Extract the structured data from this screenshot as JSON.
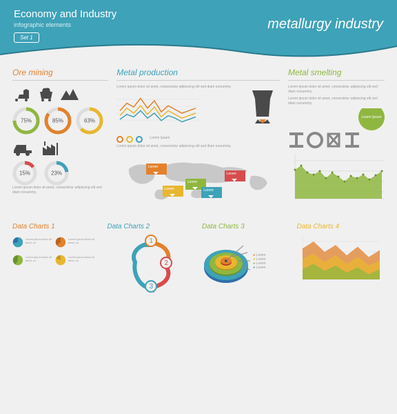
{
  "colors": {
    "teal": "#3ea2b8",
    "orange": "#e2812d",
    "green": "#8fb73f",
    "red": "#d84c4c",
    "yellow": "#e8b730",
    "blue": "#2f6fa8",
    "gray": "#888888",
    "dark": "#4a4a4a",
    "bg": "#f0f0f0"
  },
  "header": {
    "title": "Economy and Industry",
    "subtitle": "infographic elements",
    "right": "metallurgy industry",
    "set": "Set 1"
  },
  "lorem_short": "Lorem ipsum dolor sit amet, consectetur adipiscing elit sed diam nonummy.",
  "lorem_ipsum": "Lorem Ipsum",
  "sections": {
    "ore": {
      "title": "Ore mining",
      "donuts1": [
        {
          "pct": 75,
          "color": "#8fb73f"
        },
        {
          "pct": 85,
          "color": "#e2812d"
        },
        {
          "pct": 63,
          "color": "#e8b730"
        }
      ],
      "donuts2": [
        {
          "pct": 15,
          "color": "#d84c4c"
        },
        {
          "pct": 23,
          "color": "#3ea2b8"
        }
      ]
    },
    "prod": {
      "title": "Metal production",
      "lines": [
        {
          "color": "#e2812d",
          "points": [
            12,
            18,
            15,
            22,
            14,
            20,
            11,
            16,
            13,
            10,
            12,
            14
          ]
        },
        {
          "color": "#e8b730",
          "points": [
            8,
            14,
            10,
            16,
            9,
            15,
            7,
            12,
            9,
            6,
            8,
            10
          ]
        },
        {
          "color": "#3ea2b8",
          "points": [
            5,
            9,
            7,
            12,
            6,
            10,
            4,
            8,
            6,
            3,
            5,
            7
          ]
        }
      ],
      "map_markers": [
        {
          "x": 18,
          "y": 15,
          "color": "#e2812d"
        },
        {
          "x": 42,
          "y": 42,
          "color": "#8fb73f"
        },
        {
          "x": 66,
          "y": 28,
          "color": "#d84c4c"
        },
        {
          "x": 52,
          "y": 58,
          "color": "#3ea2b8"
        },
        {
          "x": 28,
          "y": 55,
          "color": "#e8b730"
        }
      ]
    },
    "smelt": {
      "title": "Metal smelting",
      "area": {
        "color_fill": "#8fb73f",
        "color_line": "#6a9030",
        "points": [
          42,
          48,
          38,
          35,
          40,
          30,
          38,
          32,
          25,
          33,
          30,
          35,
          28,
          34,
          40
        ],
        "ymax": 60
      }
    }
  },
  "charts": {
    "c1": {
      "title": "Data Charts 1",
      "color": "#e2812d",
      "pies": [
        {
          "pct": 72,
          "c1": "#3ea2b8",
          "c2": "#2f6fa8"
        },
        {
          "pct": 65,
          "c1": "#e2812d",
          "c2": "#b8641f"
        },
        {
          "pct": 58,
          "c1": "#8fb73f",
          "c2": "#6a9030"
        },
        {
          "pct": 80,
          "c1": "#e8b730",
          "c2": "#c49820"
        }
      ]
    },
    "c2": {
      "title": "Data Charts 2",
      "color": "#3ea2b8",
      "nums": [
        1,
        2,
        3
      ]
    },
    "c3": {
      "title": "Data Charts 3",
      "color": "#8fb73f"
    },
    "c4": {
      "title": "Data Charts 4",
      "color": "#e8b730",
      "areas": [
        {
          "color": "#e2812d",
          "points": [
            18,
            22,
            16,
            20,
            14,
            19,
            13,
            17
          ]
        },
        {
          "color": "#e8b730",
          "points": [
            12,
            15,
            10,
            14,
            9,
            13,
            8,
            11
          ]
        },
        {
          "color": "#8fb73f",
          "points": [
            6,
            9,
            5,
            8,
            4,
            7,
            3,
            6
          ]
        }
      ]
    }
  }
}
